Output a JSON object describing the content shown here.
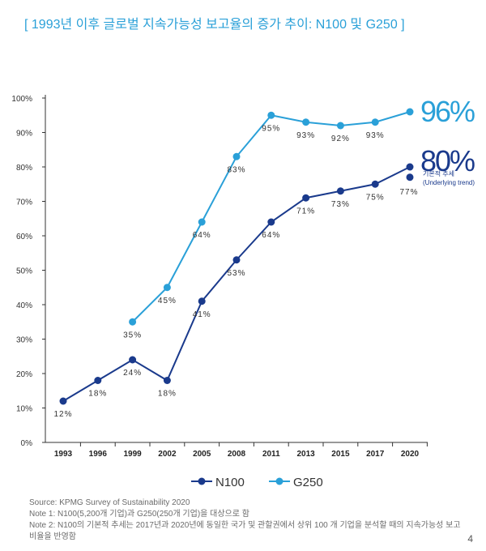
{
  "title": "[ 1993년 이후 글로벌 지속가능성 보고율의 증가 추이: N100 및 G250 ]",
  "chart_data": {
    "type": "line",
    "x": [
      "1993",
      "1996",
      "1999",
      "2002",
      "2005",
      "2008",
      "2011",
      "2013",
      "2015",
      "2017",
      "2020"
    ],
    "ylim": [
      0,
      100
    ],
    "y_ticks": [
      "0%",
      "10%",
      "20%",
      "30%",
      "40%",
      "50%",
      "60%",
      "70%",
      "80%",
      "90%",
      "100%"
    ],
    "legend_position": "bottom",
    "series": [
      {
        "name": "N100",
        "color": "#1a3a8c",
        "values": [
          12,
          18,
          24,
          18,
          41,
          53,
          64,
          71,
          73,
          75,
          80
        ],
        "labels": [
          "12%",
          "18%",
          "24%",
          "18%",
          "41%",
          "53%",
          "64%",
          "71%",
          "73%",
          "75%",
          null
        ]
      },
      {
        "name": "G250",
        "color": "#2aa0d8",
        "values": [
          null,
          null,
          35,
          45,
          64,
          83,
          95,
          93,
          92,
          93,
          96
        ],
        "labels": [
          null,
          null,
          "35%",
          "45%",
          "64%",
          "83%",
          "95%",
          "93%",
          "92%",
          "93%",
          null
        ]
      }
    ],
    "underlying_trend": {
      "value": 77,
      "label": "77%",
      "text_line1": "기본적 추세",
      "text_line2": "(Underlying trend)"
    },
    "end_labels": {
      "g250": "96%",
      "n100": "80%"
    }
  },
  "notes": {
    "source": "Source: KPMG Survey of Sustainability 2020",
    "note1": "Note 1: N100(5,200개 기업)과 G250(250개 기업)을 대상으로 함",
    "note2": "Note 2: N100의 기본적 추세는 2017년과 2020년에 동일한 국가 및 관할권에서 상위 100 개 기업을 분석할 때의 지속가능성 보고 비율을 반영함"
  },
  "page_number": "4"
}
